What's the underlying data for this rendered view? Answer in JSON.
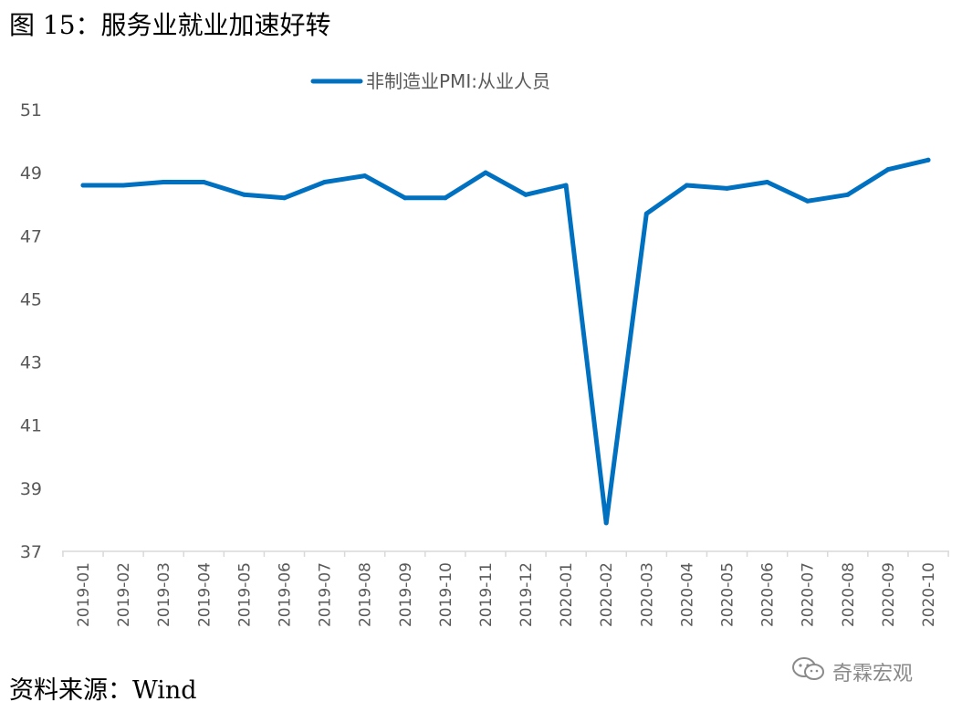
{
  "figure_title": "图 15：服务业就业加速好转",
  "source_note": "资料来源：Wind",
  "watermark": {
    "icon": "wechat-icon",
    "text": "奇霖宏观"
  },
  "colors": {
    "series": "#0070C0",
    "axis": "#D9D9D9",
    "text": "#595959"
  },
  "chart_data": {
    "type": "line",
    "title": "",
    "xlabel": "",
    "ylabel": "",
    "ylim": [
      37,
      51
    ],
    "yticks": [
      "51",
      "49",
      "47",
      "45",
      "43",
      "41",
      "39",
      "37"
    ],
    "grid": false,
    "legend_position": "top",
    "categories": [
      "2019-01",
      "2019-02",
      "2019-03",
      "2019-04",
      "2019-05",
      "2019-06",
      "2019-07",
      "2019-08",
      "2019-09",
      "2019-10",
      "2019-11",
      "2019-12",
      "2020-01",
      "2020-02",
      "2020-03",
      "2020-04",
      "2020-05",
      "2020-06",
      "2020-07",
      "2020-08",
      "2020-09",
      "2020-10"
    ],
    "series": [
      {
        "name": "非制造业PMI:从业人员",
        "values": [
          48.6,
          48.6,
          48.7,
          48.7,
          48.3,
          48.2,
          48.7,
          48.9,
          48.2,
          48.2,
          49.0,
          48.3,
          48.6,
          37.9,
          47.7,
          48.6,
          48.5,
          48.7,
          48.1,
          48.3,
          49.1,
          49.4
        ]
      }
    ]
  }
}
